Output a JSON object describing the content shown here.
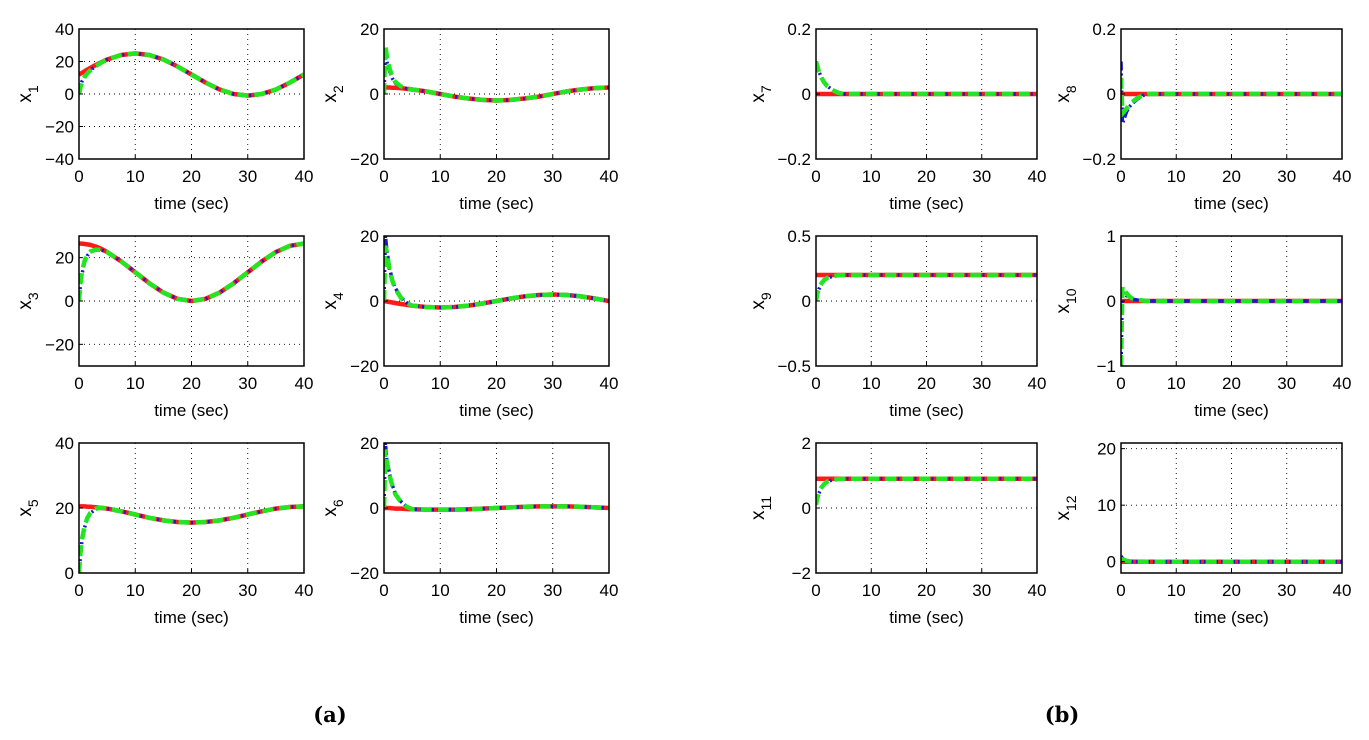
{
  "chart_data": {
    "type": "line",
    "layout": "two panels, each a 3x2 grid of subplots",
    "colors": {
      "reference": "#ff1a1a",
      "estimate_blue": "#1a1acc",
      "estimate_green": "#22e622",
      "grid": "#000000"
    },
    "t": [
      0,
      0.5,
      1,
      1.5,
      2,
      3,
      4,
      5,
      7.5,
      10,
      12.5,
      15,
      17.5,
      20,
      22.5,
      25,
      27.5,
      30,
      32.5,
      35,
      37.5,
      40
    ],
    "t_transient": [
      0,
      0.25,
      0.5,
      1,
      1.5,
      2,
      3,
      4,
      5
    ],
    "xlim": [
      0,
      40
    ],
    "xticks": [
      0,
      10,
      20,
      30,
      40
    ],
    "xlabel": "time (sec)",
    "panels": [
      {
        "caption": "(a)",
        "subplots": [
          {
            "ylabel": "x",
            "sub": "1",
            "ylim": [
              -40,
              40
            ],
            "yticks": [
              -40,
              -20,
              0,
              20,
              40
            ],
            "reference": [
              12,
              13.0,
              14.0,
              15.0,
              16.0,
              17.9,
              19.6,
              21.2,
              24.0,
              25,
              24.0,
              21.2,
              17.0,
              12,
              7.0,
              2.8,
              0.0,
              -1,
              0.0,
              2.8,
              7.0,
              12
            ],
            "estimate_blue": [
              0,
              4.5,
              7.5,
              10.8,
              13,
              14.6,
              17.3,
              19.5,
              21.2
            ],
            "estimate_green": [
              0,
              4,
              7,
              10.5,
              12.8,
              14.5,
              17.2,
              19.4,
              21.2
            ]
          },
          {
            "ylabel": "x",
            "sub": "2",
            "ylim": [
              -20,
              20
            ],
            "yticks": [
              -20,
              0,
              20
            ],
            "reference": [
              2,
              2,
              2,
              1.9,
              1.9,
              1.8,
              1.6,
              1.4,
              0.8,
              0,
              -0.8,
              -1.4,
              -1.8,
              -2,
              -1.8,
              -1.4,
              -0.8,
              0,
              0.8,
              1.4,
              1.8,
              2
            ],
            "estimate_blue": [
              0,
              12,
              10,
              7,
              4.8,
              3.4,
              2.1,
              1.7,
              1.4
            ],
            "estimate_green": [
              0,
              15,
              11.5,
              7.8,
              5.2,
              3.7,
              2.3,
              1.8,
              1.4
            ]
          },
          {
            "ylabel": "x",
            "sub": "3",
            "ylim": [
              -30,
              30
            ],
            "yticks": [
              -20,
              0,
              20
            ],
            "reference": [
              26.5,
              26.5,
              26.3,
              26.1,
              25.9,
              25.1,
              24.0,
              22.6,
              18.3,
              13.25,
              8.2,
              3.9,
              1.0,
              0,
              1.0,
              3.9,
              8.2,
              13.25,
              18.3,
              22.6,
              25.5,
              26.5
            ],
            "estimate_blue": [
              0,
              7,
              12,
              18,
              21,
              22.6,
              23.6,
              23.5,
              22.6
            ],
            "estimate_green": [
              0,
              8,
              13,
              18.5,
              21.3,
              22.8,
              23.7,
              23.6,
              22.6
            ]
          },
          {
            "ylabel": "x",
            "sub": "4",
            "ylim": [
              -20,
              20
            ],
            "yticks": [
              -20,
              0,
              20
            ],
            "reference": [
              0,
              -0.16,
              -0.31,
              -0.47,
              -0.62,
              -0.91,
              -1.18,
              -1.41,
              -1.85,
              -2,
              -1.85,
              -1.41,
              -0.77,
              0,
              0.77,
              1.41,
              1.85,
              2,
              1.85,
              1.41,
              0.77,
              0
            ],
            "estimate_blue": [
              0,
              20,
              16,
              10,
              6.5,
              4,
              1.2,
              -0.5,
              -1.41
            ],
            "estimate_green": [
              0,
              17,
              15,
              9.5,
              6.2,
              3.8,
              1.0,
              -0.6,
              -1.41
            ]
          },
          {
            "ylabel": "x",
            "sub": "5",
            "ylim": [
              0,
              40
            ],
            "yticks": [
              0,
              20,
              40
            ],
            "reference": [
              20.5,
              20.5,
              20.5,
              20.4,
              20.4,
              20.2,
              20.0,
              19.8,
              19.0,
              18,
              17.0,
              16.2,
              15.7,
              15.5,
              15.7,
              16.2,
              17.0,
              18,
              19.0,
              19.8,
              20.3,
              20.5
            ],
            "estimate_blue": [
              0,
              5,
              9.5,
              14,
              16.8,
              18.4,
              19.7,
              20.1,
              19.8
            ],
            "estimate_green": [
              0,
              6,
              10,
              14.5,
              17,
              18.5,
              19.8,
              20.1,
              19.8
            ]
          },
          {
            "ylabel": "x",
            "sub": "6",
            "ylim": [
              -20,
              20
            ],
            "yticks": [
              -20,
              0,
              20
            ],
            "reference": [
              0,
              0,
              0,
              -0.1,
              -0.2,
              -0.2,
              -0.3,
              -0.4,
              -0.5,
              -0.5,
              -0.5,
              -0.4,
              -0.2,
              0,
              0.2,
              0.4,
              0.5,
              0.5,
              0.5,
              0.4,
              0.2,
              0
            ],
            "estimate_blue": [
              0,
              20,
              15,
              10.5,
              7,
              4.5,
              2,
              0.5,
              -0.35
            ],
            "estimate_green": [
              0,
              18,
              14,
              10,
              6.8,
              4.3,
              1.8,
              0.4,
              -0.35
            ]
          }
        ]
      },
      {
        "caption": "(b)",
        "subplots": [
          {
            "ylabel": "x",
            "sub": "7",
            "ylim": [
              -0.2,
              0.2
            ],
            "yticks": [
              -0.2,
              0,
              0.2
            ],
            "reference": 0,
            "estimate_blue": [
              0.1,
              0.085,
              0.07,
              0.05,
              0.035,
              0.025,
              0.012,
              0.004,
              0
            ],
            "estimate_green": [
              0.1,
              0.085,
              0.07,
              0.05,
              0.035,
              0.025,
              0.012,
              0.004,
              0
            ]
          },
          {
            "ylabel": "x",
            "sub": "8",
            "ylim": [
              -0.2,
              0.2
            ],
            "yticks": [
              -0.2,
              0,
              0.2
            ],
            "reference": 0,
            "estimate_blue": [
              0.1,
              -0.09,
              -0.08,
              -0.055,
              -0.04,
              -0.03,
              -0.015,
              -0.005,
              0
            ],
            "estimate_green": [
              0.05,
              -0.06,
              -0.055,
              -0.045,
              -0.035,
              -0.025,
              -0.012,
              -0.004,
              0
            ]
          },
          {
            "ylabel": "x",
            "sub": "9",
            "ylim": [
              -0.5,
              0.5
            ],
            "yticks": [
              -0.5,
              0,
              0.5
            ],
            "reference": 0.2,
            "estimate_blue": [
              0,
              0.05,
              0.09,
              0.13,
              0.16,
              0.175,
              0.19,
              0.197,
              0.2
            ],
            "estimate_green": [
              0,
              0.06,
              0.1,
              0.135,
              0.162,
              0.177,
              0.191,
              0.198,
              0.2
            ]
          },
          {
            "ylabel": "x",
            "sub": "10",
            "ylim": [
              -1,
              1
            ],
            "yticks": [
              -1,
              0,
              1
            ],
            "reference": 0,
            "estimate_blue": [
              -1,
              0.15,
              0.12,
              0.08,
              0.05,
              0.03,
              0.015,
              0.005,
              0
            ],
            "estimate_green": [
              -1,
              0.22,
              0.18,
              0.12,
              0.07,
              0.04,
              0.02,
              0.007,
              0
            ]
          },
          {
            "ylabel": "x",
            "sub": "11",
            "ylim": [
              -2,
              2
            ],
            "yticks": [
              -2,
              0,
              2
            ],
            "reference": 0.9,
            "estimate_blue": [
              0.1,
              0.3,
              0.45,
              0.62,
              0.73,
              0.8,
              0.87,
              0.89,
              0.9
            ],
            "estimate_green": [
              0.1,
              0.32,
              0.47,
              0.63,
              0.74,
              0.81,
              0.87,
              0.89,
              0.9
            ]
          },
          {
            "ylabel": "x",
            "sub": "12",
            "ylim": [
              -2,
              21
            ],
            "yticks": [
              0,
              10,
              20
            ],
            "reference": 0,
            "estimate_blue": [
              1,
              0.6,
              0.4,
              0.2,
              0.1,
              0.05,
              0.02,
              0.01,
              0
            ],
            "estimate_green": [
              0.5,
              0.4,
              0.3,
              0.15,
              0.08,
              0.04,
              0.02,
              0.01,
              0
            ]
          }
        ]
      }
    ]
  }
}
